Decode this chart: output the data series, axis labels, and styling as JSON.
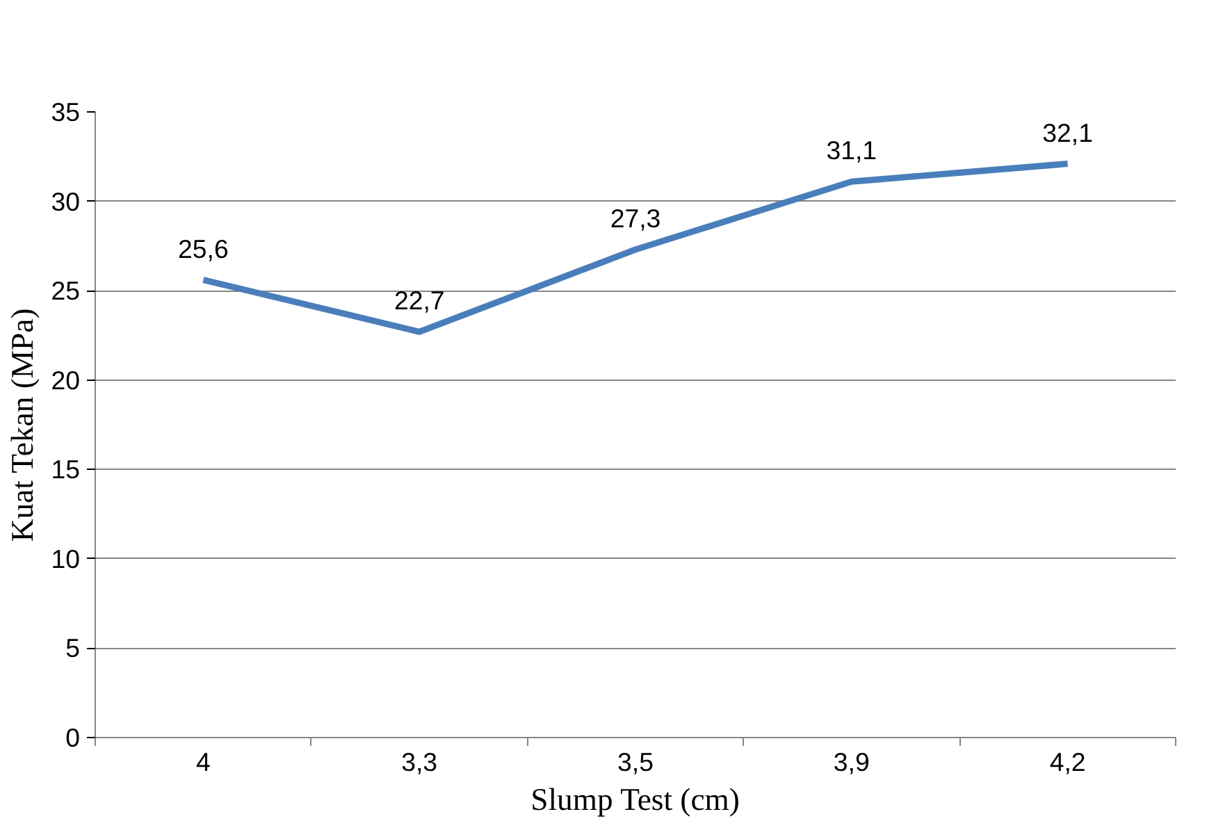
{
  "chart_data": {
    "type": "line",
    "xlabel": "Slump Test (cm)",
    "ylabel": "Kuat Tekan (MPa)",
    "categories": [
      "4",
      "3,3",
      "3,5",
      "3,9",
      "4,2"
    ],
    "series": [
      {
        "color": "#4a7ebb",
        "values": [
          25.6,
          22.7,
          27.3,
          31.1,
          32.1
        ],
        "value_labels": [
          "25,6",
          "22,7",
          "27,3",
          "31,1",
          "32,1"
        ]
      }
    ],
    "ylim": [
      0,
      35
    ],
    "yticks": [
      0,
      5,
      10,
      15,
      20,
      25,
      30,
      35
    ],
    "grid": "y",
    "marker": "none",
    "line_style": "solid"
  }
}
